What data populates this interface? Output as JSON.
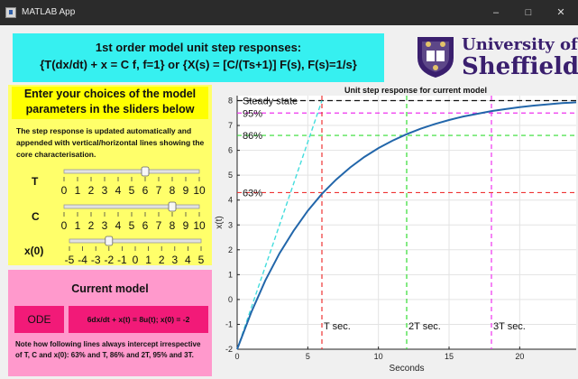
{
  "window": {
    "title": "MATLAB App",
    "controls": {
      "minimize": "–",
      "maximize": "□",
      "close": "✕"
    }
  },
  "header": {
    "line1": "1st order model unit step responses:",
    "line2": "{T(dx/dt) + x = C f,  f=1} or {X(s) = [C/(Ts+1)] F(s), F(s)=1/s}"
  },
  "logo": {
    "line1": "University of",
    "line2": "Sheffield",
    "icon": "university-crest-icon"
  },
  "instructions": {
    "title": "Enter your choices of the model parameters in the sliders below",
    "help": "The step response is updated automatically and appended with vertical/horizontal lines showing the core characterisation."
  },
  "sliders": [
    {
      "label": "T",
      "value": 6,
      "min": 0,
      "max": 10,
      "ticks": [
        "0",
        "1",
        "2",
        "3",
        "4",
        "5",
        "6",
        "7",
        "8",
        "9",
        "10"
      ]
    },
    {
      "label": "C",
      "value": 8,
      "min": 0,
      "max": 10,
      "ticks": [
        "0",
        "1",
        "2",
        "3",
        "4",
        "5",
        "6",
        "7",
        "8",
        "9",
        "10"
      ]
    },
    {
      "label": "x(0)",
      "value": -2,
      "min": -5,
      "max": 5,
      "ticks": [
        "-5",
        "-4",
        "-3",
        "-2",
        "-1",
        "0",
        "1",
        "2",
        "3",
        "4",
        "5"
      ]
    }
  ],
  "model": {
    "title": "Current model",
    "ode_button": "ODE",
    "equation": "6dx/dt + x(t) = 8u(t); x(0) = -2",
    "note": "Note how following lines always intercept irrespective of T, C and x(0): 63% and T, 86% and 2T, 95% and 3T."
  },
  "colors": {
    "header": "#36f0f0",
    "left_panel": "#ffff6a",
    "instr_box": "#ffff00",
    "model_panel": "#ff99cc",
    "ode": "#f21a78",
    "curve": "#2266aa"
  },
  "chart_data": {
    "type": "line",
    "title": "Unit step response for current model",
    "xlabel": "Seconds",
    "ylabel": "x(t)",
    "xlim": [
      0,
      24
    ],
    "ylim": [
      -2,
      8.2
    ],
    "xticks": [
      0,
      5,
      10,
      15,
      20
    ],
    "yticks": [
      -2,
      -1,
      0,
      1,
      2,
      3,
      4,
      5,
      6,
      7,
      8
    ],
    "grid": true,
    "params": {
      "T": 6,
      "C": 8,
      "x0": -2
    },
    "series": [
      {
        "x": [
          0,
          1,
          2,
          3,
          4,
          5,
          6,
          7,
          8,
          9,
          10,
          11,
          12,
          13,
          14,
          15,
          16,
          17,
          18,
          19,
          20,
          21,
          22,
          23,
          24
        ],
        "y": [
          -2.0,
          -0.51,
          0.77,
          1.86,
          2.77,
          3.57,
          4.25,
          4.82,
          5.31,
          5.73,
          6.09,
          6.39,
          6.65,
          6.87,
          7.06,
          7.22,
          7.36,
          7.47,
          7.58,
          7.66,
          7.74,
          7.8,
          7.85,
          7.9,
          7.93
        ]
      }
    ],
    "steady_state": {
      "value": 8,
      "label": "Steady state"
    },
    "levels": [
      {
        "label": "95%",
        "value": 7.5
      },
      {
        "label": "86%",
        "value": 6.6
      },
      {
        "label": "63%",
        "value": 4.3
      }
    ],
    "time_markers": [
      {
        "label": "T sec.",
        "value": 6
      },
      {
        "label": "2T sec.",
        "value": 12
      },
      {
        "label": "3T sec.",
        "value": 18
      }
    ],
    "tangent": {
      "x": [
        0,
        6
      ],
      "y": [
        -2,
        8
      ]
    }
  }
}
